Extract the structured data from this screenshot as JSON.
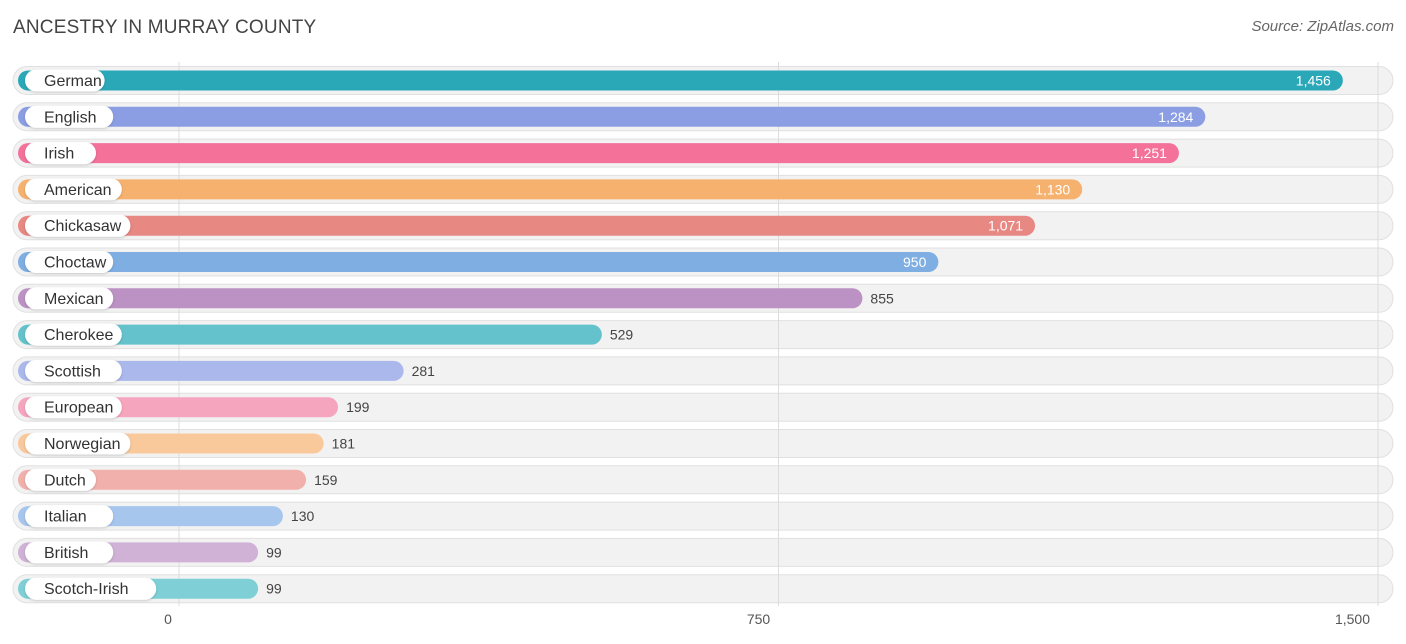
{
  "header": {
    "title": "ANCESTRY IN MURRAY COUNTY",
    "source": "Source: ZipAtlas.com"
  },
  "chart_data": {
    "type": "bar",
    "orientation": "horizontal",
    "title": "ANCESTRY IN MURRAY COUNTY",
    "categories": [
      "German",
      "English",
      "Irish",
      "American",
      "Chickasaw",
      "Choctaw",
      "Mexican",
      "Cherokee",
      "Scottish",
      "European",
      "Norwegian",
      "Dutch",
      "Italian",
      "British",
      "Scotch-Irish"
    ],
    "values": [
      1456,
      1284,
      1251,
      1130,
      1071,
      950,
      855,
      529,
      281,
      199,
      181,
      159,
      130,
      99,
      99
    ],
    "value_labels": [
      "1,456",
      "1,284",
      "1,251",
      "1,130",
      "1,071",
      "950",
      "855",
      "529",
      "281",
      "199",
      "181",
      "159",
      "130",
      "99",
      "99"
    ],
    "colors": [
      "#2aa8b8",
      "#8b9ee3",
      "#f4729a",
      "#f7b16e",
      "#e88882",
      "#7eaee2",
      "#bb92c3",
      "#63c2cb",
      "#aab8ec",
      "#f6a5bf",
      "#f9c99c",
      "#f1b0ab",
      "#a7c6ed",
      "#cfb2d6",
      "#7ecfd6"
    ],
    "xlim": [
      0,
      1500
    ],
    "ticks": [
      0,
      750,
      1500
    ],
    "tick_labels": [
      "0",
      "750",
      "1,500"
    ],
    "grid": true,
    "xlabel": "",
    "ylabel": ""
  }
}
